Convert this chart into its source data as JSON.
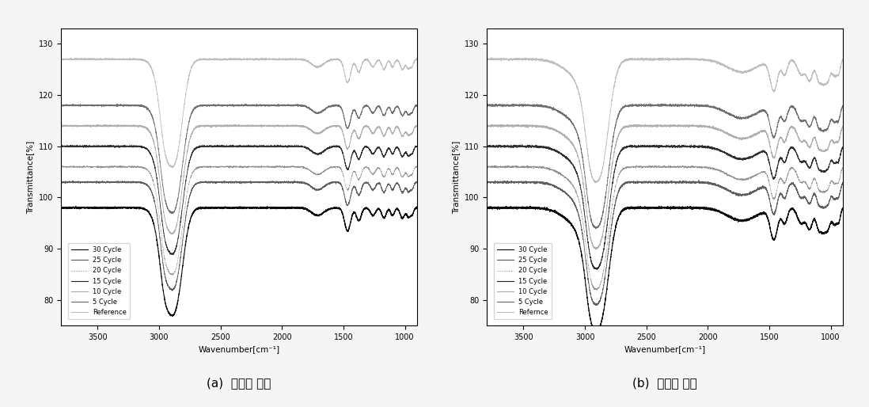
{
  "title_a": "(a)  지지층 소재",
  "title_b": "(b)  표면층 소재",
  "xlabel": "Wavenumber[cm⁻¹]",
  "ylabel": "Transmittance[%]",
  "xlim": [
    3800,
    900
  ],
  "ylim": [
    75,
    133
  ],
  "yticks": [
    80,
    90,
    100,
    110,
    120,
    130
  ],
  "xticks": [
    3500,
    3000,
    2500,
    2000,
    1500,
    1000
  ],
  "legend_labels_a": [
    "30 Cycle",
    "25 Cycle",
    "20 Cycle",
    "15 Cycle",
    "10 Cycle",
    "5 Cycle",
    "Reference"
  ],
  "legend_labels_b": [
    "30 Cycle",
    "25 Cycle",
    "20 Cycle",
    "15 Cycle",
    "10 Cycle",
    "5 Cycle",
    "Refernce"
  ],
  "colors": [
    "#000000",
    "#555555",
    "#888888",
    "#222222",
    "#aaaaaa",
    "#666666",
    "#bbbbbb"
  ],
  "lstyles": [
    "-",
    "-",
    ":",
    "-",
    "-",
    "-",
    "-"
  ],
  "lwidths": [
    0.8,
    0.6,
    0.6,
    0.6,
    0.6,
    0.6,
    0.6
  ],
  "offsets": [
    0,
    5,
    8,
    12,
    16,
    20,
    29
  ],
  "base_level": 98,
  "bg_color": "#ffffff",
  "fig_bg": "#f5f5f5"
}
